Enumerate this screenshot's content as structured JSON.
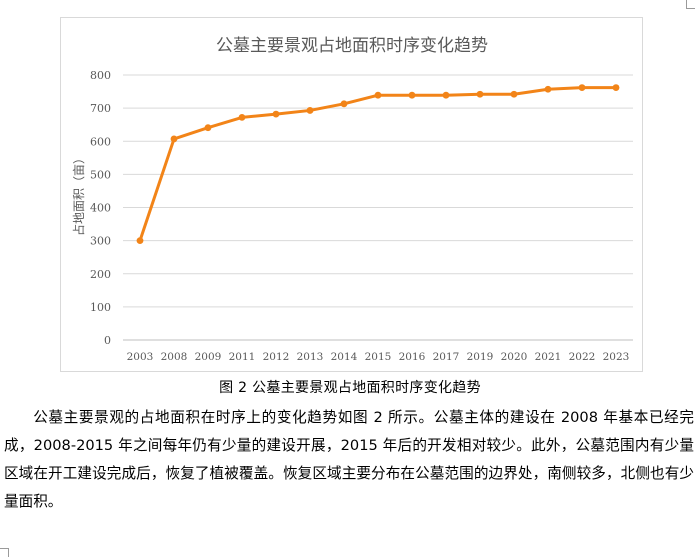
{
  "chart_data": {
    "type": "line",
    "title": "公墓主要景观占地面积时序变化趋势",
    "ylabel": "占地面积（亩）",
    "xlabel": "",
    "categories": [
      "2003",
      "2008",
      "2009",
      "2011",
      "2012",
      "2013",
      "2014",
      "2015",
      "2016",
      "2017",
      "2019",
      "2020",
      "2021",
      "2022",
      "2023"
    ],
    "values": [
      300,
      607,
      641,
      672,
      682,
      693,
      713,
      739,
      739,
      739,
      742,
      742,
      757,
      762,
      762
    ],
    "ylim": [
      0,
      800
    ],
    "yticks": [
      "0",
      "100",
      "200",
      "300",
      "400",
      "500",
      "600",
      "700",
      "800"
    ],
    "line_color": "#F28418",
    "grid": true,
    "legend": "none"
  },
  "caption": "图 2  公墓主要景观占地面积时序变化趋势",
  "body_text": "公墓主要景观的占地面积在时序上的变化趋势如图 2 所示。公墓主体的建设在 2008 年基本已经完成，2008-2015 年之间每年仍有少量的建设开展，2015 年后的开发相对较少。此外，公墓范围内有少量区域在开工建设完成后，恢复了植被覆盖。恢复区域主要分布在公墓范围的边界处，南侧较多，北侧也有少量面积。"
}
